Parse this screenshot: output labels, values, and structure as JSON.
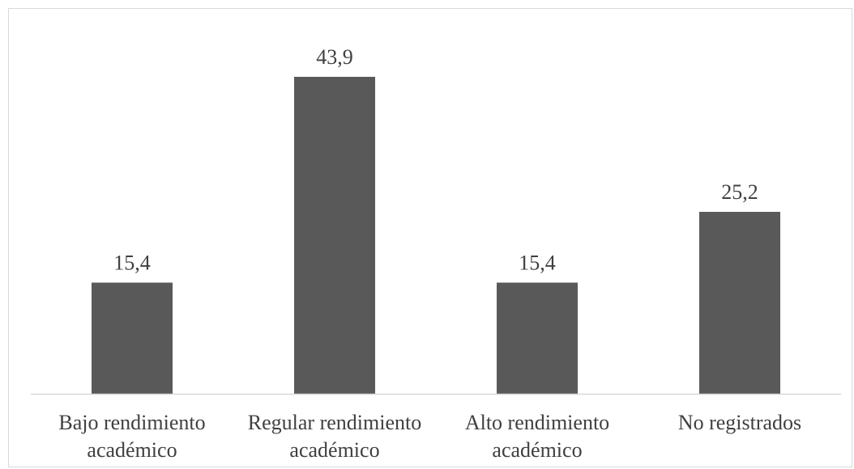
{
  "chart_data": {
    "type": "bar",
    "categories": [
      [
        "Bajo rendimiento",
        "académico"
      ],
      [
        "Regular rendimiento",
        "académico"
      ],
      [
        "Alto rendimiento",
        "académico"
      ],
      [
        "No registrados"
      ]
    ],
    "values": [
      15.4,
      43.9,
      15.4,
      25.2
    ],
    "data_labels": [
      "15,4",
      "43,9",
      "15,4",
      "25,2"
    ],
    "title": "",
    "xlabel": "",
    "ylabel": "",
    "ylim": [
      0,
      43.9
    ],
    "grid": false,
    "legend": "none",
    "bar_color": "#595959",
    "axis_color": "#d9d9d9",
    "text_color": "#404040"
  }
}
